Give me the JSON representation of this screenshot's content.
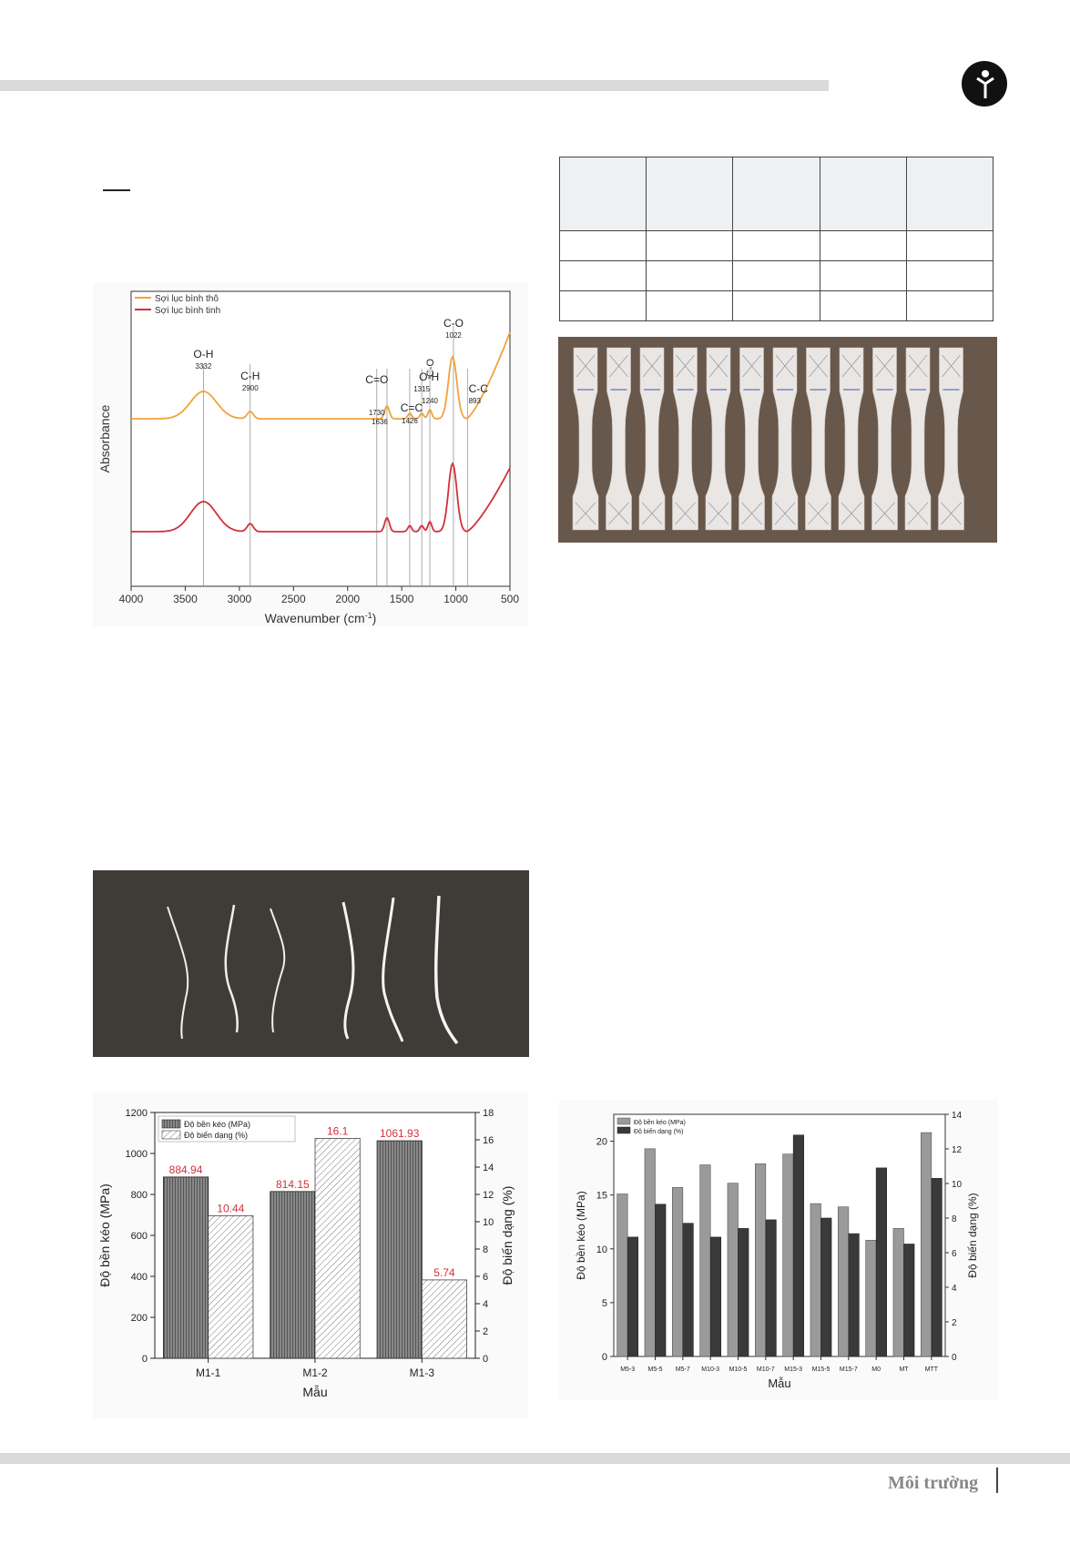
{
  "header": {
    "logo_icon": "journal-logo-icon"
  },
  "ftir_chart": {
    "type": "line",
    "xlabel": "Wavenumber (cm",
    "xlabel_sup": "-1",
    "xlabel_end": ")",
    "ylabel": "Absorbance",
    "xlim": [
      4000,
      500
    ],
    "xticks": [
      "4000",
      "3500",
      "3000",
      "2500",
      "2000",
      "1500",
      "1000",
      "500"
    ],
    "legend": [
      "Sợi lục bình thô",
      "Sợi lục bình tinh"
    ],
    "colors": {
      "raw": "#f2a23c",
      "refined": "#d2303a"
    },
    "peaks": [
      {
        "name": "O-H",
        "value": "3332",
        "x": 3332
      },
      {
        "name": "C-H",
        "value": "2900",
        "x": 2900
      },
      {
        "name": "C=O",
        "value": "1730",
        "x": 1730
      },
      {
        "name": "",
        "value": "1636",
        "x": 1636
      },
      {
        "name": "C=C",
        "value": "1426",
        "x": 1426
      },
      {
        "name": "O-H",
        "value": "1315",
        "x": 1315
      },
      {
        "name": "C-O",
        "value": "1240",
        "x": 1240
      },
      {
        "name": "C-O",
        "value": "1022",
        "x": 1022
      },
      {
        "name": "C-C",
        "value": "893",
        "x": 893
      }
    ]
  },
  "bar_chart_1": {
    "type": "bar",
    "categories": [
      "M1-1",
      "M1-2",
      "M1-3"
    ],
    "series": [
      {
        "name": "Độ bền kéo (MPa)",
        "values": [
          884.94,
          814.15,
          1061.93
        ],
        "labels": [
          "884.94",
          "814.15",
          "1061.93"
        ],
        "axis": "left"
      },
      {
        "name": "Độ biến dạng (%)",
        "values": [
          10.44,
          16.1,
          5.74
        ],
        "labels": [
          "10.44",
          "16.1",
          "5.74"
        ],
        "axis": "right"
      }
    ],
    "ylim_left": [
      0,
      1200
    ],
    "yticks_left": [
      "0",
      "200",
      "400",
      "600",
      "800",
      "1000",
      "1200"
    ],
    "ylim_right": [
      0,
      18
    ],
    "yticks_right": [
      "0",
      "2",
      "4",
      "6",
      "8",
      "10",
      "12",
      "14",
      "16",
      "18"
    ],
    "xlabel": "Mẫu",
    "ylabel_left": "Độ bền kéo (MPa)",
    "ylabel_right": "Độ biến dạng (%)",
    "label_color": "#d2303a"
  },
  "bar_chart_2": {
    "type": "bar",
    "categories": [
      "M5-3",
      "M5-5",
      "M5-7",
      "M10-3",
      "M10-5",
      "M10-7",
      "M15-3",
      "M15-5",
      "M15-7",
      "M0",
      "MT",
      "MTT"
    ],
    "series": [
      {
        "name": "Độ bền kéo (MPa)",
        "values": [
          15.1,
          19.3,
          15.7,
          17.8,
          16.1,
          17.9,
          18.8,
          14.2,
          13.9,
          10.8,
          11.9,
          20.8
        ],
        "axis": "left"
      },
      {
        "name": "Độ biến dạng (%)",
        "values": [
          6.9,
          8.8,
          7.7,
          6.9,
          7.4,
          7.9,
          12.8,
          8.0,
          7.1,
          10.9,
          6.5,
          10.3
        ],
        "axis": "right"
      }
    ],
    "ylim_left": [
      0,
      22.5
    ],
    "yticks_left": [
      "0",
      "5",
      "10",
      "15",
      "20"
    ],
    "ylim_right": [
      0,
      14
    ],
    "yticks_right": [
      "0",
      "2",
      "4",
      "6",
      "8",
      "10",
      "12",
      "14"
    ],
    "xlabel": "Mẫu",
    "ylabel_left": "Độ bền kéo (MPa)",
    "ylabel_right": "Độ biến dạng (%)"
  },
  "footer": {
    "section": "Môi trường"
  }
}
